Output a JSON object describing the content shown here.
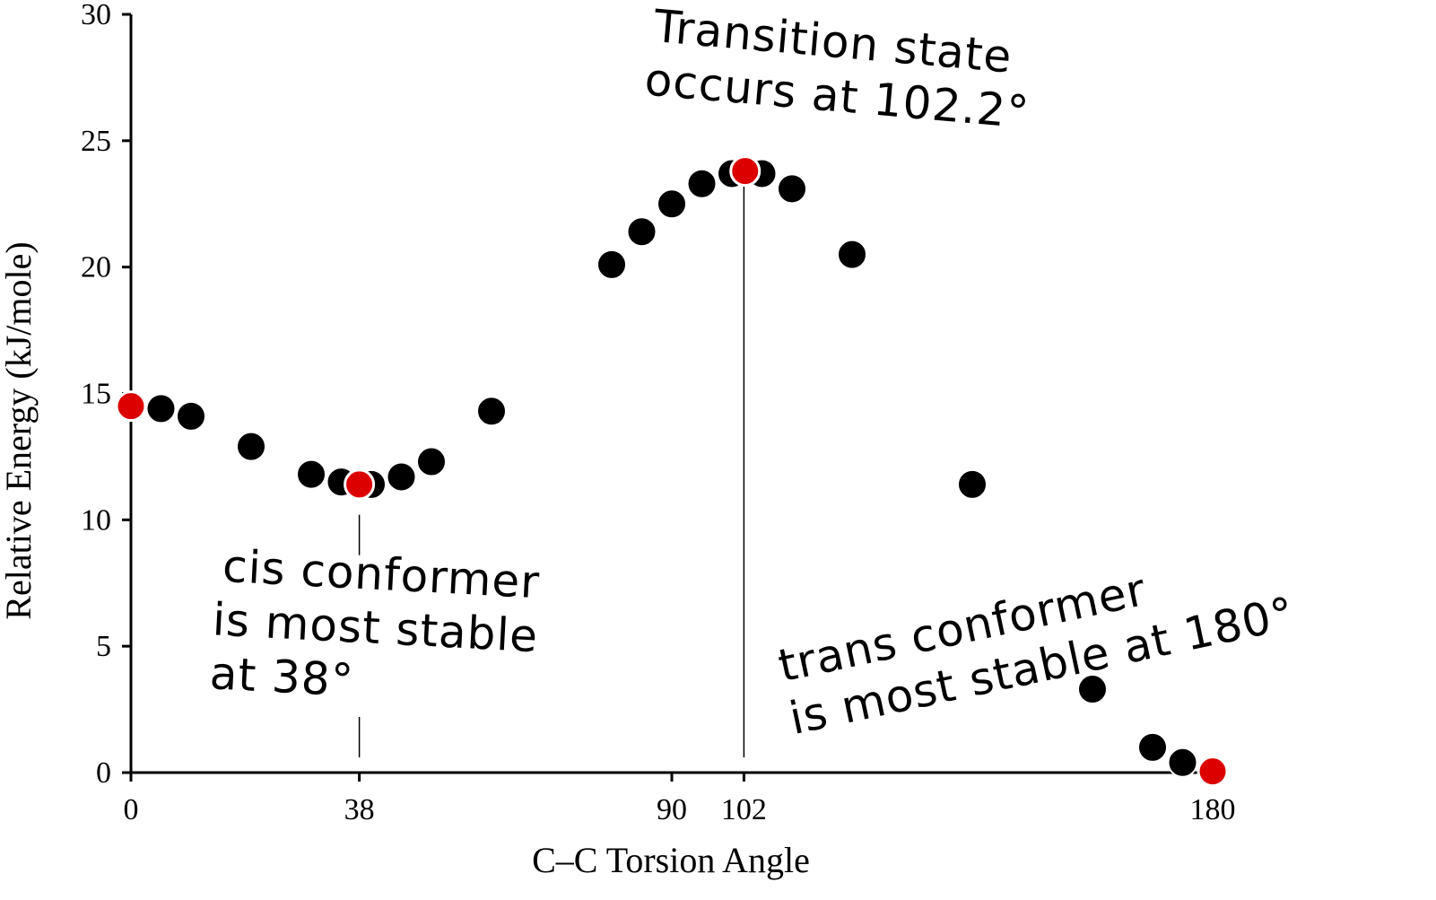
{
  "chart_data": {
    "type": "scatter",
    "ylabel": "Relative Energy (kJ/mole)",
    "xlabel": "C–C Torsion Angle",
    "xlim": [
      0,
      180
    ],
    "ylim": [
      0,
      30
    ],
    "x_ticks": [
      0,
      38,
      90,
      102,
      180
    ],
    "y_ticks": [
      0,
      5,
      10,
      15,
      20,
      25,
      30
    ],
    "grid": false,
    "legend": "none",
    "colors": {
      "normal": "#000000",
      "highlight": "#dd0000"
    },
    "points": [
      {
        "x": 0,
        "y": 14.5,
        "highlight": true
      },
      {
        "x": 5,
        "y": 14.4,
        "highlight": false
      },
      {
        "x": 10,
        "y": 14.1,
        "highlight": false
      },
      {
        "x": 20,
        "y": 12.9,
        "highlight": false
      },
      {
        "x": 30,
        "y": 11.8,
        "highlight": false
      },
      {
        "x": 35,
        "y": 11.5,
        "highlight": false
      },
      {
        "x": 40,
        "y": 11.4,
        "highlight": false
      },
      {
        "x": 45,
        "y": 11.7,
        "highlight": false
      },
      {
        "x": 50,
        "y": 12.3,
        "highlight": false
      },
      {
        "x": 60,
        "y": 14.3,
        "highlight": false
      },
      {
        "x": 38,
        "y": 11.4,
        "highlight": true
      },
      {
        "x": 80,
        "y": 20.1,
        "highlight": false
      },
      {
        "x": 85,
        "y": 21.4,
        "highlight": false
      },
      {
        "x": 90,
        "y": 22.5,
        "highlight": false
      },
      {
        "x": 95,
        "y": 23.3,
        "highlight": false
      },
      {
        "x": 100,
        "y": 23.7,
        "highlight": false
      },
      {
        "x": 105,
        "y": 23.7,
        "highlight": false
      },
      {
        "x": 110,
        "y": 23.1,
        "highlight": false
      },
      {
        "x": 102.2,
        "y": 23.8,
        "highlight": true
      },
      {
        "x": 120,
        "y": 20.5,
        "highlight": false
      },
      {
        "x": 140,
        "y": 11.4,
        "highlight": false
      },
      {
        "x": 160,
        "y": 3.3,
        "highlight": false
      },
      {
        "x": 170,
        "y": 1.0,
        "highlight": false
      },
      {
        "x": 175,
        "y": 0.4,
        "highlight": false
      },
      {
        "x": 180,
        "y": 0.05,
        "highlight": true
      }
    ],
    "annotations": {
      "transition": [
        "Transition state",
        "occurs at 102.2°"
      ],
      "cis": [
        "cis conformer",
        "is most stable",
        "at 38°"
      ],
      "trans": [
        "trans conformer",
        "is most stable at 180°"
      ]
    },
    "guide_lines": [
      {
        "x": 38,
        "y_from": 0,
        "y_to": 10.2,
        "dashed_gap": true
      },
      {
        "x": 102,
        "y_from": 0,
        "y_to": 23.8,
        "dashed_gap": false
      }
    ]
  }
}
